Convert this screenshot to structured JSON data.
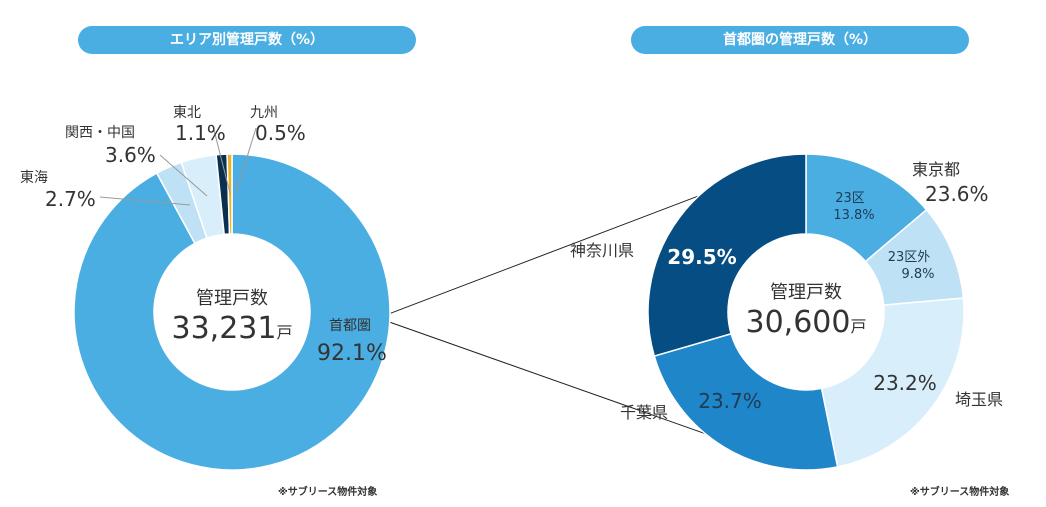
{
  "colors": {
    "pill": "#4aaee3",
    "region_shutoken": "#4aaee3",
    "region_tokai": "#bfe1f5",
    "region_kansai": "#d8eefa",
    "region_tohoku": "#0b2f4f",
    "region_kyushu": "#e8b22a",
    "tokyo_23": "#4aaee3",
    "tokyo_outside": "#bfe1f5",
    "saitama": "#d8eefa",
    "chiba": "#1f86c9",
    "kanagawa": "#054d82"
  },
  "chart_data": [
    {
      "type": "pie",
      "title": "エリア別管理戸数（%）",
      "center_label": "管理戸数",
      "center_value": "33,231",
      "center_unit": "戸",
      "slices": [
        {
          "name": "首都圏",
          "value": 92.1,
          "label": "92.1%"
        },
        {
          "name": "東海",
          "value": 2.7,
          "label": "2.7%"
        },
        {
          "name": "関西・中国",
          "value": 3.6,
          "label": "3.6%"
        },
        {
          "name": "東北",
          "value": 1.1,
          "label": "1.1%"
        },
        {
          "name": "九州",
          "value": 0.5,
          "label": "0.5%"
        }
      ],
      "footnote": "※サブリース物件対象"
    },
    {
      "type": "pie",
      "title": "首都圏の管理戸数（%）",
      "center_label": "管理戸数",
      "center_value": "30,600",
      "center_unit": "戸",
      "slices": [
        {
          "name": "23区",
          "value": 13.8,
          "label": "13.8%"
        },
        {
          "name": "23区外",
          "value": 9.8,
          "label": "9.8%"
        },
        {
          "name": "埼玉県",
          "value": 23.2,
          "label": "23.2%"
        },
        {
          "name": "千葉県",
          "value": 23.7,
          "label": "23.7%"
        },
        {
          "name": "神奈川県",
          "value": 29.5,
          "label": "29.5%"
        }
      ],
      "group_labels": [
        {
          "name": "東京都",
          "value": 23.6,
          "label": "23.6%"
        }
      ],
      "footnote": "※サブリース物件対象"
    }
  ]
}
